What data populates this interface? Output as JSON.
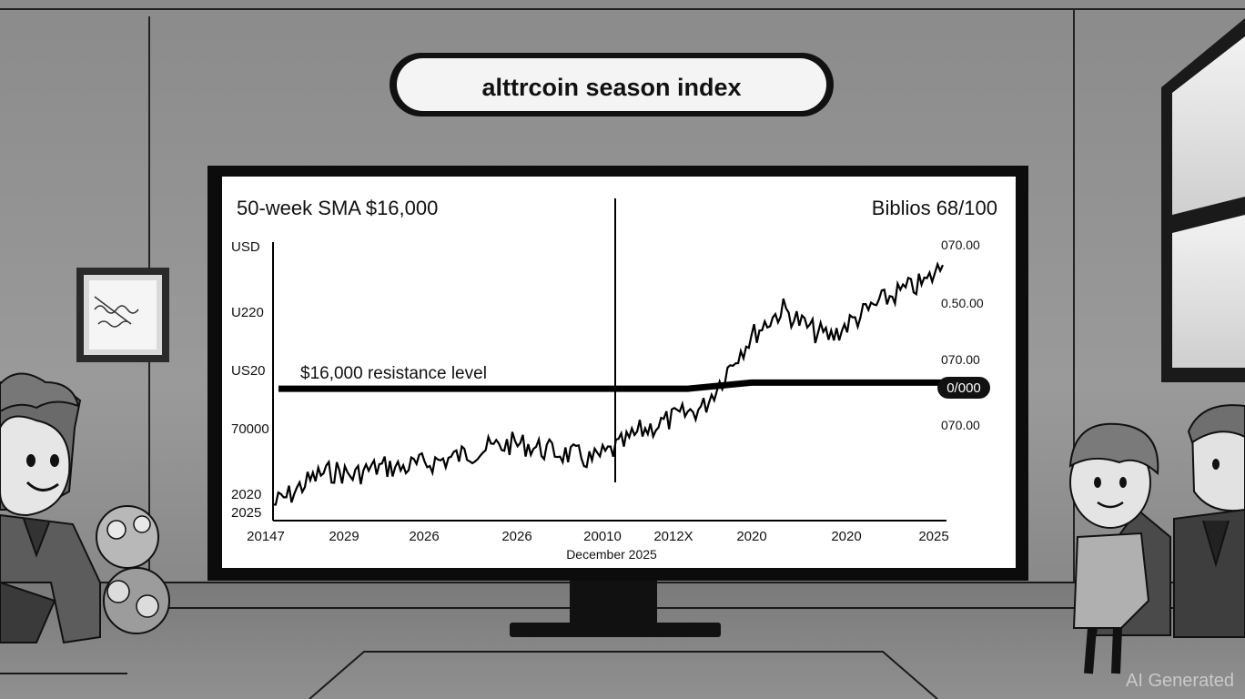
{
  "banner": {
    "title": "alttrcoin season index"
  },
  "screen": {
    "header_left": "50-week SMA $16,000",
    "header_right": "Biblios 68/100",
    "resistance_label": "$16,000 resistance level",
    "resistance_badge": "0/000",
    "x_caption": "December 2025"
  },
  "chart_data": {
    "type": "line",
    "y_tick_labels_left": [
      "USD",
      "U220",
      "US20",
      "70000",
      "2020",
      "2025"
    ],
    "y_tick_labels_right": [
      "070.00",
      "0.50.00",
      "070.00",
      "070.00"
    ],
    "x_tick_labels": [
      "20147",
      "2029",
      "2026",
      "2026",
      "20010",
      "2012X",
      "2020",
      "2020",
      "2025"
    ],
    "series": [
      {
        "values": [
          8,
          14,
          22,
          28,
          30,
          27,
          31,
          33,
          32,
          34,
          36,
          38,
          41,
          44,
          46,
          48,
          47,
          44,
          42,
          40,
          37,
          42,
          48,
          56,
          60,
          64,
          68,
          72,
          88,
          105,
          118,
          128,
          136,
          128,
          121,
          118,
          126,
          133,
          140,
          146,
          150,
          154,
          165
        ]
      }
    ],
    "resistance_line": [
      {
        "x_index": 0,
        "y": 84
      },
      {
        "x_index": 26,
        "y": 84
      },
      {
        "x_index": 30,
        "y": 88
      },
      {
        "x_index": 42,
        "y": 88
      }
    ],
    "ylim": [
      0,
      180
    ],
    "colors": {
      "line": "#000000",
      "screen_bg": "#ffffff"
    }
  },
  "watermark": {
    "text": "AI Generated"
  }
}
